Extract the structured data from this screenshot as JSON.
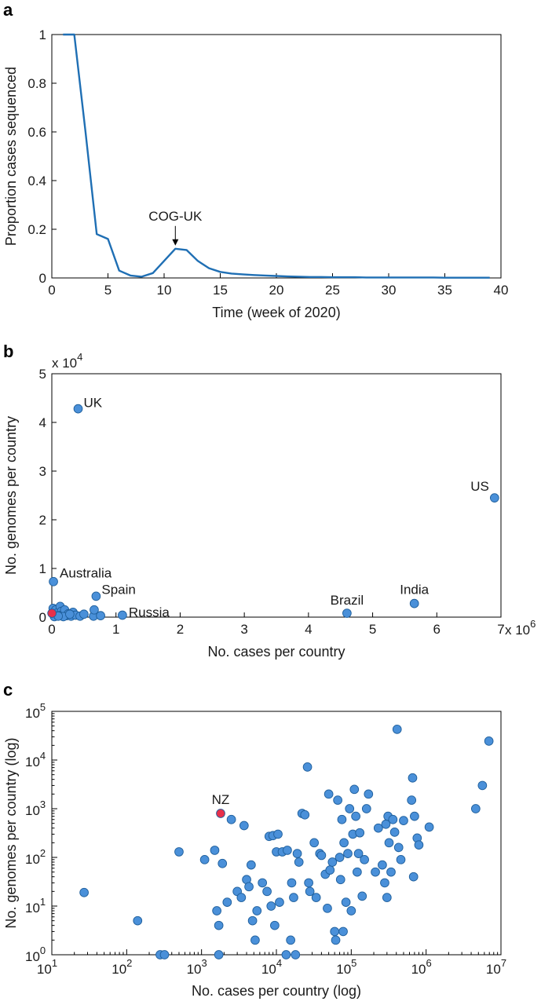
{
  "colors": {
    "line": "#1f6fb4",
    "point_fill": "#4a90d9",
    "point_stroke": "#1f5f9c",
    "highlight": "#e8304a"
  },
  "chart_data": [
    {
      "panel": "a",
      "type": "line",
      "xlabel": "Time (week of 2020)",
      "ylabel": "Proportion cases sequenced",
      "xlim": [
        0,
        40
      ],
      "ylim": [
        0,
        1
      ],
      "xticks": [
        0,
        5,
        10,
        15,
        20,
        25,
        30,
        35,
        40
      ],
      "yticks": [
        0,
        0.2,
        0.4,
        0.6,
        0.8,
        1
      ],
      "ytick_labels": [
        "0",
        "0.2",
        "0.4",
        "0.6",
        "0.8",
        "1"
      ],
      "x": [
        1,
        2,
        3,
        4,
        5,
        6,
        7,
        8,
        9,
        10,
        11,
        12,
        13,
        14,
        15,
        16,
        17,
        18,
        19,
        20,
        21,
        22,
        23,
        24,
        25,
        26,
        27,
        28,
        29,
        30,
        31,
        32,
        33,
        34,
        35,
        36,
        37,
        38,
        39
      ],
      "y": [
        1,
        1,
        0.6,
        0.18,
        0.16,
        0.03,
        0.01,
        0.005,
        0.02,
        0.07,
        0.12,
        0.115,
        0.07,
        0.04,
        0.025,
        0.018,
        0.015,
        0.012,
        0.01,
        0.008,
        0.006,
        0.005,
        0.004,
        0.004,
        0.003,
        0.003,
        0.003,
        0.002,
        0.002,
        0.002,
        0.002,
        0.002,
        0.002,
        0.002,
        0.001,
        0.001,
        0.001,
        0.001,
        0.001
      ],
      "annotation": {
        "text": "COG-UK",
        "x": 11,
        "y": 0.12
      }
    },
    {
      "panel": "b",
      "type": "scatter",
      "xlabel": "No. cases per country",
      "ylabel": "No. genomes per country",
      "x_multiplier": "x 10",
      "x_exponent": "6",
      "y_multiplier": "x 10",
      "y_exponent": "4",
      "xlim": [
        0,
        7000000
      ],
      "ylim": [
        0,
        50000
      ],
      "xticks": [
        0,
        1000000,
        2000000,
        3000000,
        4000000,
        5000000,
        6000000,
        7000000
      ],
      "xtick_labels": [
        "0",
        "1",
        "2",
        "3",
        "4",
        "5",
        "6",
        "7"
      ],
      "yticks": [
        0,
        10000,
        20000,
        30000,
        40000,
        50000
      ],
      "ytick_labels": [
        "0",
        "1",
        "2",
        "3",
        "4",
        "5"
      ],
      "labeled_points": [
        {
          "label": "UK",
          "x": 410000,
          "y": 42800
        },
        {
          "label": "US",
          "x": 6900000,
          "y": 24500
        },
        {
          "label": "Australia",
          "x": 25000,
          "y": 7300
        },
        {
          "label": "Spain",
          "x": 690000,
          "y": 4300
        },
        {
          "label": "Russia",
          "x": 1100000,
          "y": 400
        },
        {
          "label": "Brazil",
          "x": 4600000,
          "y": 800
        },
        {
          "label": "India",
          "x": 5650000,
          "y": 2800
        }
      ],
      "points": [
        {
          "x": 20000,
          "y": 1800
        },
        {
          "x": 60000,
          "y": 1500
        },
        {
          "x": 90000,
          "y": 900
        },
        {
          "x": 130000,
          "y": 2200
        },
        {
          "x": 150000,
          "y": 1200
        },
        {
          "x": 170000,
          "y": 500
        },
        {
          "x": 200000,
          "y": 1500
        },
        {
          "x": 230000,
          "y": 300
        },
        {
          "x": 260000,
          "y": 700
        },
        {
          "x": 300000,
          "y": 200
        },
        {
          "x": 330000,
          "y": 1000
        },
        {
          "x": 370000,
          "y": 400
        },
        {
          "x": 440000,
          "y": 200
        },
        {
          "x": 500000,
          "y": 600
        },
        {
          "x": 650000,
          "y": 200
        },
        {
          "x": 660000,
          "y": 1500
        },
        {
          "x": 760000,
          "y": 300
        },
        {
          "x": 40000,
          "y": 100
        },
        {
          "x": 110000,
          "y": 300
        },
        {
          "x": 180000,
          "y": 100
        },
        {
          "x": 280000,
          "y": 600
        },
        {
          "x": 100000,
          "y": 200
        }
      ],
      "highlight_point": {
        "x": 1800,
        "y": 800
      }
    },
    {
      "panel": "c",
      "type": "scatter",
      "xlabel": "No. cases per country (log)",
      "ylabel": "No. genomes per country (log)",
      "xscale": "log",
      "yscale": "log",
      "xlim": [
        10,
        10000000
      ],
      "ylim": [
        1,
        100000
      ],
      "xtick_exponents": [
        "1",
        "2",
        "3",
        "4",
        "5",
        "6",
        "7"
      ],
      "ytick_exponents": [
        "0",
        "1",
        "2",
        "3",
        "4",
        "5"
      ],
      "highlight_label": "NZ",
      "highlight_point": {
        "x": 1800,
        "y": 800
      },
      "points": [
        {
          "x": 27,
          "y": 19
        },
        {
          "x": 140,
          "y": 5
        },
        {
          "x": 280,
          "y": 1
        },
        {
          "x": 320,
          "y": 1
        },
        {
          "x": 500,
          "y": 130
        },
        {
          "x": 1100,
          "y": 90
        },
        {
          "x": 1500,
          "y": 140
        },
        {
          "x": 1600,
          "y": 8
        },
        {
          "x": 1700,
          "y": 4
        },
        {
          "x": 1700,
          "y": 1
        },
        {
          "x": 1900,
          "y": 75
        },
        {
          "x": 2200,
          "y": 12
        },
        {
          "x": 2500,
          "y": 600
        },
        {
          "x": 3000,
          "y": 20
        },
        {
          "x": 3400,
          "y": 15
        },
        {
          "x": 3700,
          "y": 450
        },
        {
          "x": 4000,
          "y": 35
        },
        {
          "x": 4300,
          "y": 25
        },
        {
          "x": 4600,
          "y": 70
        },
        {
          "x": 4800,
          "y": 5
        },
        {
          "x": 5200,
          "y": 2
        },
        {
          "x": 5500,
          "y": 8
        },
        {
          "x": 6500,
          "y": 30
        },
        {
          "x": 7500,
          "y": 20
        },
        {
          "x": 8000,
          "y": 270
        },
        {
          "x": 8500,
          "y": 10
        },
        {
          "x": 9000,
          "y": 280
        },
        {
          "x": 9500,
          "y": 4
        },
        {
          "x": 10000,
          "y": 130
        },
        {
          "x": 10500,
          "y": 300
        },
        {
          "x": 11000,
          "y": 12
        },
        {
          "x": 12000,
          "y": 130
        },
        {
          "x": 13500,
          "y": 1
        },
        {
          "x": 14000,
          "y": 140
        },
        {
          "x": 15500,
          "y": 2
        },
        {
          "x": 16000,
          "y": 30
        },
        {
          "x": 17000,
          "y": 15
        },
        {
          "x": 18000,
          "y": 1
        },
        {
          "x": 19000,
          "y": 120
        },
        {
          "x": 20000,
          "y": 80
        },
        {
          "x": 22000,
          "y": 800
        },
        {
          "x": 24000,
          "y": 750
        },
        {
          "x": 26000,
          "y": 7200
        },
        {
          "x": 27000,
          "y": 30
        },
        {
          "x": 28000,
          "y": 20
        },
        {
          "x": 32000,
          "y": 200
        },
        {
          "x": 34000,
          "y": 15
        },
        {
          "x": 38000,
          "y": 120
        },
        {
          "x": 40000,
          "y": 110
        },
        {
          "x": 45000,
          "y": 45
        },
        {
          "x": 48000,
          "y": 9
        },
        {
          "x": 50000,
          "y": 2000
        },
        {
          "x": 52000,
          "y": 55
        },
        {
          "x": 56000,
          "y": 80
        },
        {
          "x": 60000,
          "y": 3
        },
        {
          "x": 62000,
          "y": 2
        },
        {
          "x": 66000,
          "y": 1500
        },
        {
          "x": 70000,
          "y": 100
        },
        {
          "x": 72000,
          "y": 35
        },
        {
          "x": 75000,
          "y": 600
        },
        {
          "x": 78000,
          "y": 3
        },
        {
          "x": 80000,
          "y": 200
        },
        {
          "x": 85000,
          "y": 12
        },
        {
          "x": 90000,
          "y": 120
        },
        {
          "x": 95000,
          "y": 1000
        },
        {
          "x": 100000,
          "y": 8
        },
        {
          "x": 105000,
          "y": 300
        },
        {
          "x": 110000,
          "y": 2500
        },
        {
          "x": 115000,
          "y": 700
        },
        {
          "x": 120000,
          "y": 50
        },
        {
          "x": 125000,
          "y": 120
        },
        {
          "x": 130000,
          "y": 320
        },
        {
          "x": 140000,
          "y": 16
        },
        {
          "x": 150000,
          "y": 90
        },
        {
          "x": 160000,
          "y": 1000
        },
        {
          "x": 170000,
          "y": 2000
        },
        {
          "x": 210000,
          "y": 50
        },
        {
          "x": 230000,
          "y": 400
        },
        {
          "x": 260000,
          "y": 70
        },
        {
          "x": 280000,
          "y": 30
        },
        {
          "x": 290000,
          "y": 480
        },
        {
          "x": 300000,
          "y": 15
        },
        {
          "x": 310000,
          "y": 700
        },
        {
          "x": 320000,
          "y": 200
        },
        {
          "x": 340000,
          "y": 50
        },
        {
          "x": 360000,
          "y": 600
        },
        {
          "x": 380000,
          "y": 330
        },
        {
          "x": 410000,
          "y": 42800
        },
        {
          "x": 430000,
          "y": 160
        },
        {
          "x": 460000,
          "y": 90
        },
        {
          "x": 500000,
          "y": 570
        },
        {
          "x": 640000,
          "y": 1500
        },
        {
          "x": 660000,
          "y": 4300
        },
        {
          "x": 680000,
          "y": 40
        },
        {
          "x": 700000,
          "y": 700
        },
        {
          "x": 760000,
          "y": 250
        },
        {
          "x": 800000,
          "y": 180
        },
        {
          "x": 1100000,
          "y": 420
        },
        {
          "x": 4600000,
          "y": 1000
        },
        {
          "x": 5650000,
          "y": 3000
        },
        {
          "x": 6900000,
          "y": 24500
        }
      ]
    }
  ]
}
